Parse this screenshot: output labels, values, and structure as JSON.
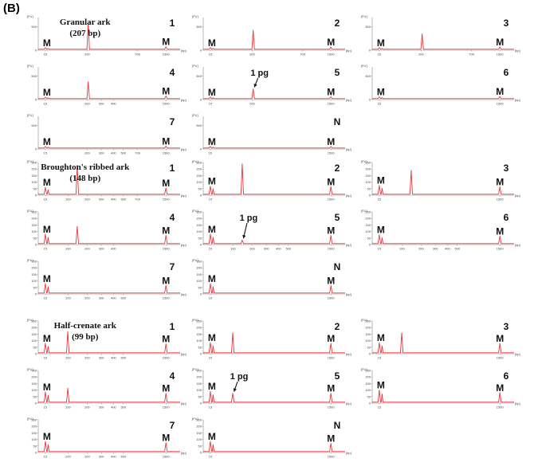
{
  "figure": {
    "panel_label": "(B)"
  },
  "chart_data": [
    {
      "type": "line",
      "group": "Granular ark",
      "sample": "1",
      "title": "Granular ark",
      "subtitle": "(207 bp)",
      "y_unit": "[FU]",
      "x_unit": "[bp]",
      "yticks": [
        "500",
        "0"
      ],
      "xticks": [
        "15",
        "200",
        "700",
        "1500"
      ],
      "ylim": [
        0,
        700
      ],
      "peaks": [
        {
          "x": 15,
          "y": 55,
          "label": "M"
        },
        {
          "x": 207,
          "y": 580,
          "label": ""
        },
        {
          "x": 1500,
          "y": 75,
          "label": "M"
        }
      ]
    },
    {
      "type": "line",
      "group": "Granular ark",
      "sample": "2",
      "title": "",
      "subtitle": "",
      "y_unit": "[FU]",
      "x_unit": "[bp]",
      "yticks": [
        "500",
        "0"
      ],
      "xticks": [
        "15",
        "200",
        "700",
        "1500"
      ],
      "ylim": [
        0,
        700
      ],
      "peaks": [
        {
          "x": 15,
          "y": 55,
          "label": "M"
        },
        {
          "x": 207,
          "y": 430,
          "label": ""
        },
        {
          "x": 1500,
          "y": 70,
          "label": "M"
        }
      ]
    },
    {
      "type": "line",
      "group": "Granular ark",
      "sample": "3",
      "title": "",
      "subtitle": "",
      "y_unit": "[FU]",
      "x_unit": "[bp]",
      "yticks": [
        "500",
        "0"
      ],
      "xticks": [
        "15",
        "200",
        "700",
        "1500"
      ],
      "ylim": [
        0,
        700
      ],
      "peaks": [
        {
          "x": 15,
          "y": 55,
          "label": "M"
        },
        {
          "x": 207,
          "y": 350,
          "label": ""
        },
        {
          "x": 1500,
          "y": 70,
          "label": "M"
        }
      ]
    },
    {
      "type": "line",
      "group": "Granular ark",
      "sample": "4",
      "title": "",
      "subtitle": "",
      "y_unit": "[FU]",
      "x_unit": "[bp]",
      "yticks": [
        "500",
        "0"
      ],
      "xticks": [
        "15",
        "200",
        "300",
        "400",
        "1500"
      ],
      "ylim": [
        0,
        700
      ],
      "peaks": [
        {
          "x": 15,
          "y": 55,
          "label": "M"
        },
        {
          "x": 207,
          "y": 380,
          "label": ""
        },
        {
          "x": 1500,
          "y": 75,
          "label": "M"
        }
      ]
    },
    {
      "type": "line",
      "group": "Granular ark",
      "sample": "5",
      "title": "",
      "subtitle": "",
      "y_unit": "[FU]",
      "x_unit": "[bp]",
      "yticks": [
        "500",
        "0"
      ],
      "xticks": [
        "15",
        "200",
        "1500"
      ],
      "ylim": [
        0,
        700
      ],
      "peaks": [
        {
          "x": 15,
          "y": 55,
          "label": "M"
        },
        {
          "x": 207,
          "y": 230,
          "label": ""
        },
        {
          "x": 1500,
          "y": 60,
          "label": "M"
        }
      ],
      "annotation": {
        "text": "1 pg",
        "arrow": true
      }
    },
    {
      "type": "line",
      "group": "Granular ark",
      "sample": "6",
      "title": "",
      "subtitle": "",
      "y_unit": "[FU]",
      "x_unit": "[bp]",
      "yticks": [
        "500",
        "0"
      ],
      "xticks": [
        "15",
        "1500"
      ],
      "ylim": [
        0,
        700
      ],
      "peaks": [
        {
          "x": 15,
          "y": 60,
          "label": "M"
        },
        {
          "x": 1500,
          "y": 65,
          "label": "M"
        }
      ]
    },
    {
      "type": "line",
      "group": "Granular ark",
      "sample": "7",
      "title": "",
      "subtitle": "",
      "y_unit": "[FU]",
      "x_unit": "[bp]",
      "yticks": [
        "500",
        "0"
      ],
      "xticks": [
        "15",
        "200",
        "300",
        "400",
        "500",
        "700",
        "1500"
      ],
      "ylim": [
        0,
        700
      ],
      "peaks": [
        {
          "x": 15,
          "y": 55,
          "label": "M"
        },
        {
          "x": 1500,
          "y": 60,
          "label": "M"
        }
      ]
    },
    {
      "type": "line",
      "group": "Granular ark",
      "sample": "N",
      "title": "",
      "subtitle": "",
      "y_unit": "[FU]",
      "x_unit": "[bp]",
      "yticks": [
        "500",
        "0"
      ],
      "xticks": [
        "15",
        "1500"
      ],
      "ylim": [
        0,
        700
      ],
      "peaks": [
        {
          "x": 15,
          "y": 55,
          "label": "M"
        },
        {
          "x": 1500,
          "y": 55,
          "label": "M"
        }
      ]
    },
    {
      "type": "line",
      "group": "Broughton's ribbed ark",
      "sample": "1",
      "title": "Broughton's ribbed ark",
      "subtitle": "(148 bp)",
      "y_unit": "[FU]",
      "x_unit": "[bp]",
      "yticks": [
        "250",
        "200",
        "150",
        "100",
        "50",
        "0"
      ],
      "xticks": [
        "15",
        "100",
        "200",
        "300",
        "400",
        "500",
        "700",
        "1500"
      ],
      "ylim": [
        0,
        250
      ],
      "peaks": [
        {
          "x": 15,
          "y": 60,
          "label": "M"
        },
        {
          "x": 148,
          "y": 230,
          "label": ""
        },
        {
          "x": 1500,
          "y": 55,
          "label": "M"
        }
      ]
    },
    {
      "type": "line",
      "group": "Broughton's ribbed ark",
      "sample": "2",
      "title": "",
      "subtitle": "",
      "y_unit": "[FU]",
      "x_unit": "[bp]",
      "yticks": [
        "250",
        "200",
        "150",
        "100",
        "50",
        "0"
      ],
      "xticks": [
        "15",
        "1500"
      ],
      "ylim": [
        0,
        250
      ],
      "peaks": [
        {
          "x": 15,
          "y": 70,
          "label": "M"
        },
        {
          "x": 148,
          "y": 240,
          "label": ""
        },
        {
          "x": 1500,
          "y": 65,
          "label": "M"
        }
      ]
    },
    {
      "type": "line",
      "group": "Broughton's ribbed ark",
      "sample": "3",
      "title": "",
      "subtitle": "",
      "y_unit": "[FU]",
      "x_unit": "[bp]",
      "yticks": [
        "250",
        "200",
        "150",
        "100",
        "50",
        "0"
      ],
      "xticks": [
        "15",
        "1500"
      ],
      "ylim": [
        0,
        250
      ],
      "peaks": [
        {
          "x": 15,
          "y": 75,
          "label": "M"
        },
        {
          "x": 148,
          "y": 190,
          "label": ""
        },
        {
          "x": 1500,
          "y": 65,
          "label": "M"
        }
      ]
    },
    {
      "type": "line",
      "group": "Broughton's ribbed ark",
      "sample": "4",
      "title": "",
      "subtitle": "",
      "y_unit": "[FU]",
      "x_unit": "[bp]",
      "yticks": [
        "250",
        "200",
        "150",
        "100",
        "50",
        "0"
      ],
      "xticks": [
        "15",
        "100",
        "200",
        "300",
        "400",
        "1500"
      ],
      "ylim": [
        0,
        250
      ],
      "peaks": [
        {
          "x": 15,
          "y": 80,
          "label": "M"
        },
        {
          "x": 148,
          "y": 140,
          "label": ""
        },
        {
          "x": 1500,
          "y": 70,
          "label": "M"
        }
      ]
    },
    {
      "type": "line",
      "group": "Broughton's ribbed ark",
      "sample": "5",
      "title": "",
      "subtitle": "",
      "y_unit": "[FU]",
      "x_unit": "[bp]",
      "yticks": [
        "250",
        "200",
        "150",
        "100",
        "50",
        "0"
      ],
      "xticks": [
        "15",
        "100",
        "200",
        "300",
        "400",
        "500",
        "1500"
      ],
      "ylim": [
        0,
        250
      ],
      "peaks": [
        {
          "x": 15,
          "y": 80,
          "label": "M"
        },
        {
          "x": 148,
          "y": 35,
          "label": ""
        },
        {
          "x": 1500,
          "y": 70,
          "label": "M"
        }
      ],
      "annotation": {
        "text": "1 pg",
        "arrow": true
      }
    },
    {
      "type": "line",
      "group": "Broughton's ribbed ark",
      "sample": "6",
      "title": "",
      "subtitle": "",
      "y_unit": "[FU]",
      "x_unit": "[bp]",
      "yticks": [
        "250",
        "200",
        "150",
        "100",
        "50",
        "0"
      ],
      "xticks": [
        "15",
        "100",
        "200",
        "300",
        "400",
        "500",
        "1500"
      ],
      "ylim": [
        0,
        250
      ],
      "peaks": [
        {
          "x": 15,
          "y": 75,
          "label": "M"
        },
        {
          "x": 1500,
          "y": 65,
          "label": "M"
        }
      ]
    },
    {
      "type": "line",
      "group": "Broughton's ribbed ark",
      "sample": "7",
      "title": "",
      "subtitle": "",
      "y_unit": "[FU]",
      "x_unit": "[bp]",
      "yticks": [
        "250",
        "200",
        "150",
        "100",
        "50",
        "0"
      ],
      "xticks": [
        "15",
        "100",
        "200",
        "300",
        "400",
        "500",
        "1500"
      ],
      "ylim": [
        0,
        250
      ],
      "peaks": [
        {
          "x": 15,
          "y": 80,
          "label": "M"
        },
        {
          "x": 1500,
          "y": 65,
          "label": "M"
        }
      ]
    },
    {
      "type": "line",
      "group": "Broughton's ribbed ark",
      "sample": "N",
      "title": "",
      "subtitle": "",
      "y_unit": "[FU]",
      "x_unit": "[bp]",
      "yticks": [
        "250",
        "200",
        "150",
        "100",
        "50",
        "0"
      ],
      "xticks": [
        "15",
        "1500"
      ],
      "ylim": [
        0,
        250
      ],
      "peaks": [
        {
          "x": 15,
          "y": 80,
          "label": "M"
        },
        {
          "x": 1500,
          "y": 65,
          "label": "M"
        }
      ]
    },
    {
      "type": "line",
      "group": "Half-crenate ark",
      "sample": "1",
      "title": "Half-crenate ark",
      "subtitle": "(99 bp)",
      "y_unit": "[FU]",
      "x_unit": "[bp]",
      "yticks": [
        "250",
        "200",
        "150",
        "100",
        "50",
        "0"
      ],
      "xticks": [
        "15",
        "100",
        "200",
        "300",
        "400",
        "500",
        "1500"
      ],
      "ylim": [
        0,
        250
      ],
      "peaks": [
        {
          "x": 15,
          "y": 80,
          "label": "M"
        },
        {
          "x": 99,
          "y": 170,
          "label": ""
        },
        {
          "x": 1500,
          "y": 75,
          "label": "M"
        }
      ]
    },
    {
      "type": "line",
      "group": "Half-crenate ark",
      "sample": "2",
      "title": "",
      "subtitle": "",
      "y_unit": "[FU]",
      "x_unit": "[bp]",
      "yticks": [
        "250",
        "200",
        "150",
        "100",
        "50",
        "0"
      ],
      "xticks": [
        "15",
        "1500"
      ],
      "ylim": [
        0,
        250
      ],
      "peaks": [
        {
          "x": 15,
          "y": 85,
          "label": "M"
        },
        {
          "x": 99,
          "y": 160,
          "label": ""
        },
        {
          "x": 1500,
          "y": 80,
          "label": "M"
        }
      ]
    },
    {
      "type": "line",
      "group": "Half-crenate ark",
      "sample": "3",
      "title": "",
      "subtitle": "",
      "y_unit": "[FU]",
      "x_unit": "[bp]",
      "yticks": [
        "250",
        "200",
        "150",
        "100",
        "50",
        "0"
      ],
      "xticks": [
        "15",
        "1500"
      ],
      "ylim": [
        0,
        250
      ],
      "peaks": [
        {
          "x": 15,
          "y": 85,
          "label": "M"
        },
        {
          "x": 99,
          "y": 160,
          "label": ""
        },
        {
          "x": 1500,
          "y": 80,
          "label": "M"
        }
      ]
    },
    {
      "type": "line",
      "group": "Half-crenate ark",
      "sample": "4",
      "title": "",
      "subtitle": "",
      "y_unit": "[FU]",
      "x_unit": "[bp]",
      "yticks": [
        "250",
        "200",
        "150",
        "100",
        "50",
        "0"
      ],
      "xticks": [
        "15",
        "100",
        "200",
        "300",
        "400",
        "500",
        "1500"
      ],
      "ylim": [
        0,
        250
      ],
      "peaks": [
        {
          "x": 15,
          "y": 85,
          "label": "M"
        },
        {
          "x": 99,
          "y": 115,
          "label": ""
        },
        {
          "x": 1500,
          "y": 75,
          "label": "M"
        }
      ]
    },
    {
      "type": "line",
      "group": "Half-crenate ark",
      "sample": "5",
      "title": "",
      "subtitle": "",
      "y_unit": "[FU]",
      "x_unit": "[bp]",
      "yticks": [
        "250",
        "200",
        "150",
        "100",
        "50",
        "0"
      ],
      "xticks": [
        "15",
        "1500"
      ],
      "ylim": [
        0,
        250
      ],
      "peaks": [
        {
          "x": 15,
          "y": 90,
          "label": "M"
        },
        {
          "x": 99,
          "y": 75,
          "label": ""
        },
        {
          "x": 1500,
          "y": 75,
          "label": "M"
        }
      ],
      "annotation": {
        "text": "1 pg",
        "arrow": true
      }
    },
    {
      "type": "line",
      "group": "Half-crenate ark",
      "sample": "6",
      "title": "",
      "subtitle": "",
      "y_unit": "[FU]",
      "x_unit": "[bp]",
      "yticks": [
        "250",
        "200",
        "150",
        "100",
        "50",
        "0"
      ],
      "xticks": [
        "15",
        "1500"
      ],
      "ylim": [
        0,
        250
      ],
      "peaks": [
        {
          "x": 15,
          "y": 100,
          "label": "M"
        },
        {
          "x": 1500,
          "y": 80,
          "label": "M"
        }
      ]
    },
    {
      "type": "line",
      "group": "Half-crenate ark",
      "sample": "7",
      "title": "",
      "subtitle": "",
      "y_unit": "[FU]",
      "x_unit": "[bp]",
      "yticks": [
        "250",
        "200",
        "150",
        "100",
        "50",
        "0"
      ],
      "xticks": [
        "15",
        "100",
        "200",
        "300",
        "400",
        "500",
        "1500"
      ],
      "ylim": [
        0,
        250
      ],
      "peaks": [
        {
          "x": 15,
          "y": 85,
          "label": "M"
        },
        {
          "x": 1500,
          "y": 75,
          "label": "M"
        }
      ]
    },
    {
      "type": "line",
      "group": "Half-crenate ark",
      "sample": "N",
      "title": "",
      "subtitle": "",
      "y_unit": "[FU]",
      "x_unit": "[bp]",
      "yticks": [
        "250",
        "200",
        "150",
        "100",
        "50",
        "0"
      ],
      "xticks": [
        "15",
        "1500"
      ],
      "ylim": [
        0,
        250
      ],
      "peaks": [
        {
          "x": 15,
          "y": 85,
          "label": "M"
        },
        {
          "x": 1500,
          "y": 70,
          "label": "M"
        }
      ]
    }
  ]
}
